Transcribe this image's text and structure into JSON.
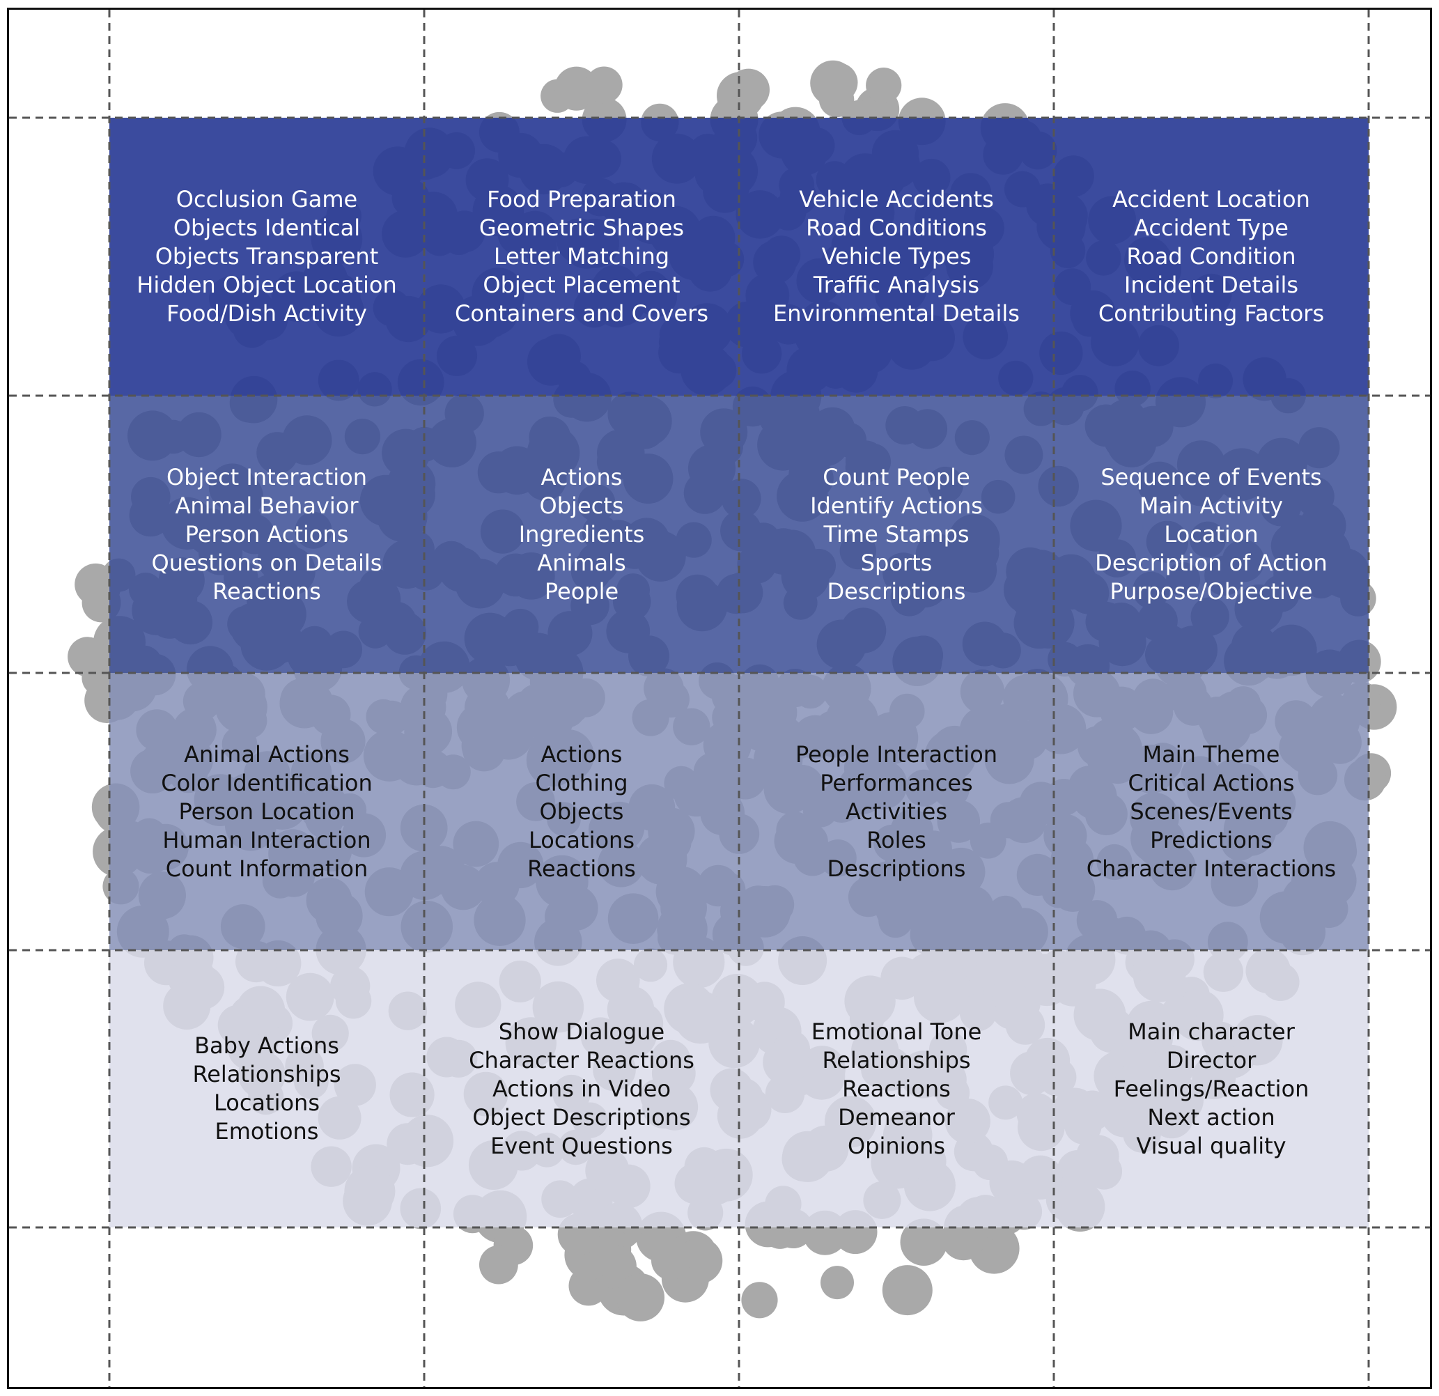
{
  "colors": {
    "row_1": "#2a3c96",
    "row_2": "#3d4f96",
    "row_3": "#8590b8",
    "row_4": "#d9dbe9",
    "blobs": "#a9a9a9",
    "text_light": "#ffffff",
    "text_dark": "#111111",
    "grid": "#555555"
  },
  "grid": {
    "rows": [
      {
        "cells": [
          {
            "items": [
              "Occlusion Game",
              "Objects Identical",
              "Objects Transparent",
              "Hidden Object Location",
              "Food/Dish Activity"
            ]
          },
          {
            "items": [
              "Food Preparation",
              "Geometric Shapes",
              "Letter Matching",
              "Object Placement",
              "Containers and Covers"
            ]
          },
          {
            "items": [
              "Vehicle Accidents",
              "Road Conditions",
              "Vehicle Types",
              "Traffic Analysis",
              "Environmental Details"
            ]
          },
          {
            "items": [
              "Accident Location",
              "Accident Type",
              "Road Condition",
              "Incident Details",
              "Contributing Factors"
            ]
          }
        ]
      },
      {
        "cells": [
          {
            "items": [
              "Object Interaction",
              "Animal Behavior",
              "Person Actions",
              "Questions on Details",
              "Reactions"
            ]
          },
          {
            "items": [
              "Actions",
              "Objects",
              "Ingredients",
              "Animals",
              "People"
            ]
          },
          {
            "items": [
              "Count People",
              "Identify Actions",
              "Time Stamps",
              "Sports",
              "Descriptions"
            ]
          },
          {
            "items": [
              "Sequence of Events",
              "Main Activity",
              "Location",
              "Description of Action",
              "Purpose/Objective"
            ]
          }
        ]
      },
      {
        "cells": [
          {
            "items": [
              "Animal Actions",
              "Color Identification",
              "Person Location",
              "Human Interaction",
              "Count Information"
            ]
          },
          {
            "items": [
              "Actions",
              "Clothing",
              "Objects",
              "Locations",
              "Reactions"
            ]
          },
          {
            "items": [
              "People Interaction",
              "Performances",
              "Activities",
              "Roles",
              "Descriptions"
            ]
          },
          {
            "items": [
              "Main Theme",
              "Critical Actions",
              "Scenes/Events",
              "Predictions",
              "Character Interactions"
            ]
          }
        ]
      },
      {
        "cells": [
          {
            "items": [
              "Baby Actions",
              "Relationships",
              "Locations",
              "Emotions"
            ]
          },
          {
            "items": [
              "Show Dialogue",
              "Character Reactions",
              "Actions in Video",
              "Object Descriptions",
              "Event Questions"
            ]
          },
          {
            "items": [
              "Emotional Tone",
              "Relationships",
              "Reactions",
              "Demeanor",
              "Opinions"
            ]
          },
          {
            "items": [
              "Main character",
              "Director",
              "Feelings/Reaction",
              "Next action",
              "Visual quality"
            ]
          }
        ]
      }
    ]
  }
}
